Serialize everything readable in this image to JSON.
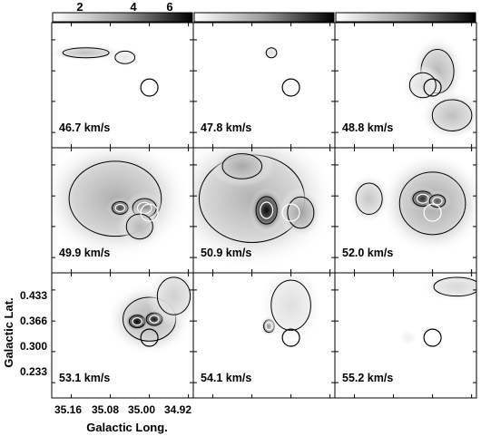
{
  "chart_data": {
    "type": "heatmap",
    "layout": "3x3 channel-map grid",
    "xlabel": "Galactic Long.",
    "ylabel": "Galactic Lat.",
    "x_ticks": [
      "35.16",
      "35.08",
      "35.00",
      "34.92"
    ],
    "y_ticks": [
      "0.433",
      "0.366",
      "0.300",
      "0.233"
    ],
    "xlim": [
      35.2,
      34.91
    ],
    "ylim": [
      0.2,
      0.47
    ],
    "colorbar_ticks": [
      "2",
      "4",
      "6"
    ],
    "colorbar_range": [
      0.8,
      7.2
    ],
    "colormap": "grayscale (white = low, black = high)",
    "panels": [
      {
        "velocity_label": "46.7 km/s",
        "peak": 2.4,
        "blobs": [
          {
            "l": 35.13,
            "b": 0.405,
            "sl": 0.035,
            "sb": 0.008,
            "a": 2.4
          },
          {
            "l": 35.05,
            "b": 0.395,
            "sl": 0.015,
            "sb": 0.01,
            "a": 1.4
          }
        ]
      },
      {
        "velocity_label": "47.8 km/s",
        "peak": 1.6,
        "blobs": [
          {
            "l": 35.04,
            "b": 0.405,
            "sl": 0.008,
            "sb": 0.008,
            "a": 1.6
          },
          {
            "l": 35.1,
            "b": 0.35,
            "sl": 0.02,
            "sb": 0.02,
            "a": 0.8
          }
        ]
      },
      {
        "velocity_label": "48.8 km/s",
        "peak": 2.6,
        "blobs": [
          {
            "l": 34.99,
            "b": 0.365,
            "sl": 0.025,
            "sb": 0.035,
            "a": 2.6
          },
          {
            "l": 34.96,
            "b": 0.27,
            "sl": 0.03,
            "sb": 0.025,
            "a": 2.4
          },
          {
            "l": 35.02,
            "b": 0.335,
            "sl": 0.02,
            "sb": 0.02,
            "a": 1.6
          }
        ]
      },
      {
        "velocity_label": "49.9 km/s",
        "peak": 5.4,
        "blobs": [
          {
            "l": 35.07,
            "b": 0.36,
            "sl": 0.07,
            "sb": 0.06,
            "a": 2.8
          },
          {
            "l": 35.06,
            "b": 0.34,
            "sl": 0.012,
            "sb": 0.01,
            "a": 5.4
          },
          {
            "l": 35.01,
            "b": 0.34,
            "sl": 0.018,
            "sb": 0.015,
            "a": 3.8
          },
          {
            "l": 35.02,
            "b": 0.3,
            "sl": 0.02,
            "sb": 0.02,
            "a": 2.6
          }
        ]
      },
      {
        "velocity_label": "50.9 km/s",
        "peak": 7.0,
        "blobs": [
          {
            "l": 35.08,
            "b": 0.36,
            "sl": 0.08,
            "sb": 0.07,
            "a": 2.7
          },
          {
            "l": 35.05,
            "b": 0.335,
            "sl": 0.016,
            "sb": 0.022,
            "a": 7.0
          },
          {
            "l": 35.1,
            "b": 0.43,
            "sl": 0.03,
            "sb": 0.02,
            "a": 3.0
          },
          {
            "l": 34.98,
            "b": 0.33,
            "sl": 0.02,
            "sb": 0.025,
            "a": 3.2
          }
        ]
      },
      {
        "velocity_label": "52.0 km/s",
        "peak": 6.0,
        "blobs": [
          {
            "l": 35.0,
            "b": 0.35,
            "sl": 0.05,
            "sb": 0.05,
            "a": 3.0
          },
          {
            "l": 35.02,
            "b": 0.36,
            "sl": 0.015,
            "sb": 0.012,
            "a": 6.0
          },
          {
            "l": 34.99,
            "b": 0.355,
            "sl": 0.012,
            "sb": 0.01,
            "a": 5.0
          },
          {
            "l": 35.13,
            "b": 0.36,
            "sl": 0.02,
            "sb": 0.025,
            "a": 2.2
          }
        ]
      },
      {
        "velocity_label": "53.1 km/s",
        "peak": 7.2,
        "blobs": [
          {
            "l": 35.0,
            "b": 0.37,
            "sl": 0.04,
            "sb": 0.035,
            "a": 2.8
          },
          {
            "l": 35.025,
            "b": 0.365,
            "sl": 0.012,
            "sb": 0.01,
            "a": 7.2
          },
          {
            "l": 34.99,
            "b": 0.37,
            "sl": 0.012,
            "sb": 0.01,
            "a": 6.5
          },
          {
            "l": 34.95,
            "b": 0.42,
            "sl": 0.025,
            "sb": 0.03,
            "a": 2.0
          }
        ]
      },
      {
        "velocity_label": "54.1 km/s",
        "peak": 4.2,
        "blobs": [
          {
            "l": 35.045,
            "b": 0.355,
            "sl": 0.008,
            "sb": 0.01,
            "a": 4.2
          },
          {
            "l": 35.0,
            "b": 0.4,
            "sl": 0.03,
            "sb": 0.04,
            "a": 1.6
          }
        ]
      },
      {
        "velocity_label": "55.2 km/s",
        "peak": 1.8,
        "blobs": [
          {
            "l": 34.95,
            "b": 0.44,
            "sl": 0.035,
            "sb": 0.015,
            "a": 1.8
          },
          {
            "l": 35.05,
            "b": 0.33,
            "sl": 0.008,
            "sb": 0.008,
            "a": 1.2
          }
        ]
      }
    ],
    "overlay_circle": {
      "l": 35.0,
      "b": 0.33,
      "radius_deg": 0.022
    }
  }
}
